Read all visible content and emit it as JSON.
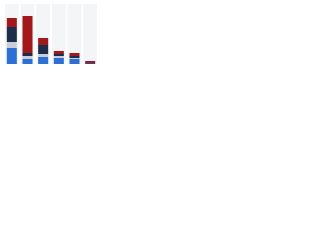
{
  "chart_data": {
    "type": "stacked-bar",
    "categories": [
      null,
      null,
      null,
      null,
      null,
      null
    ],
    "series": [
      {
        "color": "#2e6fd6",
        "values": [
          16,
          5,
          7,
          6,
          5,
          0.5
        ]
      },
      {
        "color": "#c9ced6",
        "values": [
          6,
          3,
          3,
          2,
          1,
          0
        ]
      },
      {
        "color": "#1b2d4b",
        "values": [
          15,
          3,
          9,
          2,
          2,
          0.5
        ]
      },
      {
        "color": "#a3181b",
        "values": [
          9,
          37,
          7,
          3,
          3,
          2
        ]
      }
    ],
    "ylim": [
      0,
      60
    ]
  }
}
